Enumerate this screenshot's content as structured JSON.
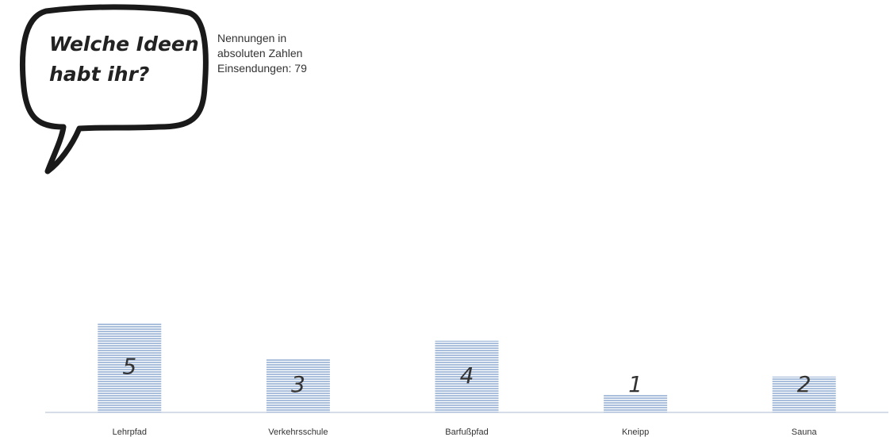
{
  "chart_data": {
    "type": "bar",
    "title": "Welche Ideen habt ihr?",
    "subtitle": [
      "Nennungen in",
      "absoluten Zahlen",
      "Einsendungen: 79"
    ],
    "categories": [
      "Lehrpfad",
      "Verkehrsschule",
      "Barfußpfad",
      "Kneipp",
      "Sauna"
    ],
    "values": [
      5,
      3,
      4,
      1,
      2
    ],
    "color": "#a9bfdc"
  }
}
